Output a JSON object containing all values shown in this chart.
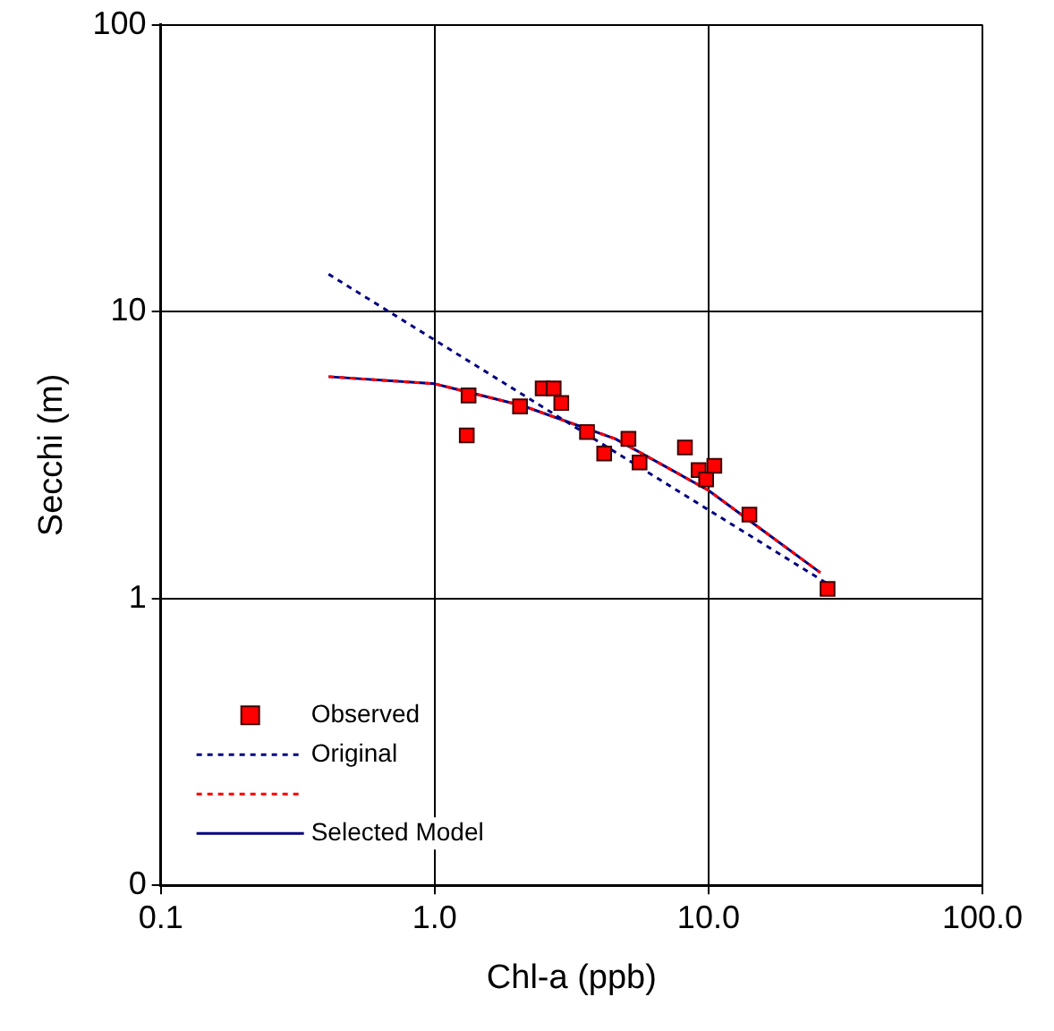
{
  "chart_data": {
    "type": "scatter",
    "xlabel": "Chl-a (ppb)",
    "ylabel": "Secchi (m)",
    "log": "xy",
    "xlim": [
      0.1,
      100
    ],
    "xticks": [
      0.1,
      {
        "value": 1,
        "label": "1.0"
      },
      {
        "value": 10,
        "label": "10.0"
      },
      {
        "value": 100,
        "label": "100.0"
      }
    ],
    "ylim": [
      0.1,
      100
    ],
    "yticks": [
      {
        "value": 0.1,
        "label": "0"
      },
      1,
      10,
      100
    ],
    "grid": true,
    "legend": "bottom left",
    "series": [
      {
        "name": "Observed",
        "marker": "square",
        "color": "#ff0000",
        "x": [
          1.33,
          1.31,
          2.05,
          2.48,
          2.72,
          2.9,
          3.6,
          4.16,
          5.1,
          5.6,
          8.2,
          9.2,
          9.8,
          10.5,
          14.1,
          27.2
        ],
        "values": [
          5.1,
          3.7,
          4.67,
          5.4,
          5.4,
          4.8,
          3.8,
          3.2,
          3.6,
          2.98,
          3.36,
          2.8,
          2.6,
          2.9,
          1.96,
          1.08
        ]
      },
      {
        "name": "Original",
        "type": "line",
        "marker": "none",
        "line_style": "dotted",
        "color": "#000080",
        "x": [
          0.41,
          27
        ],
        "values": [
          13.5,
          1.13
        ]
      },
      {
        "type": "line",
        "marker": "none",
        "line_style": "dotted",
        "color": "#ff0000",
        "x": [
          0.41,
          1,
          2.09,
          4.57,
          10,
          16,
          25.6
        ],
        "values": [
          5.93,
          5.6,
          4.7,
          3.6,
          2.38,
          1.71,
          1.23
        ]
      },
      {
        "name": "Selected Model",
        "type": "line",
        "marker": "none",
        "line_style": "solid",
        "color": "#000080",
        "x": [
          0.41,
          1,
          2.09,
          4.57,
          10,
          16,
          25.6
        ],
        "values": [
          5.93,
          5.6,
          4.7,
          3.6,
          2.38,
          1.71,
          1.23
        ]
      }
    ]
  }
}
